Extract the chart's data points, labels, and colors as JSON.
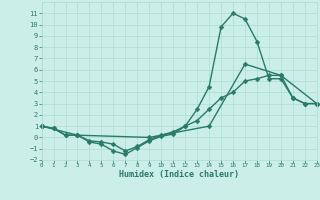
{
  "xlabel": "Humidex (Indice chaleur)",
  "line1_x": [
    0,
    1,
    2,
    3,
    4,
    5,
    6,
    7,
    8,
    9,
    10,
    11,
    12,
    13,
    14,
    15,
    16,
    17,
    18,
    19,
    20,
    21,
    22,
    23
  ],
  "line1_y": [
    1,
    0.8,
    0.2,
    0.2,
    -0.4,
    -0.6,
    -1.2,
    -1.5,
    -0.9,
    -0.3,
    0.1,
    0.3,
    1.0,
    2.5,
    4.5,
    9.8,
    11.0,
    10.5,
    8.5,
    5.2,
    5.2,
    3.5,
    3.0,
    3.0
  ],
  "line2_x": [
    0,
    1,
    2,
    3,
    4,
    5,
    6,
    7,
    8,
    9,
    10,
    11,
    12,
    13,
    14,
    15,
    16,
    17,
    18,
    19,
    20,
    21,
    22,
    23
  ],
  "line2_y": [
    1,
    0.8,
    0.2,
    0.2,
    -0.3,
    -0.4,
    -0.6,
    -1.2,
    -0.8,
    -0.2,
    0.2,
    0.5,
    1.0,
    1.5,
    2.5,
    3.5,
    4.0,
    5.0,
    5.2,
    5.5,
    5.5,
    3.5,
    3.0,
    3.0
  ],
  "line3_x": [
    0,
    3,
    9,
    14,
    17,
    20,
    23
  ],
  "line3_y": [
    1,
    0.2,
    0.0,
    1.0,
    6.5,
    5.5,
    3.0
  ],
  "line_color": "#2a7a6a",
  "bg_color": "#cceee8",
  "grid_color": "#aaddcc",
  "ylim": [
    -2,
    12
  ],
  "xlim": [
    0,
    23
  ],
  "yticks": [
    -2,
    -1,
    0,
    1,
    2,
    3,
    4,
    5,
    6,
    7,
    8,
    9,
    10,
    11
  ],
  "xticks": [
    0,
    1,
    2,
    3,
    4,
    5,
    6,
    7,
    8,
    9,
    10,
    11,
    12,
    13,
    14,
    15,
    16,
    17,
    18,
    19,
    20,
    21,
    22,
    23
  ],
  "markersize": 2.5,
  "linewidth": 1.0
}
